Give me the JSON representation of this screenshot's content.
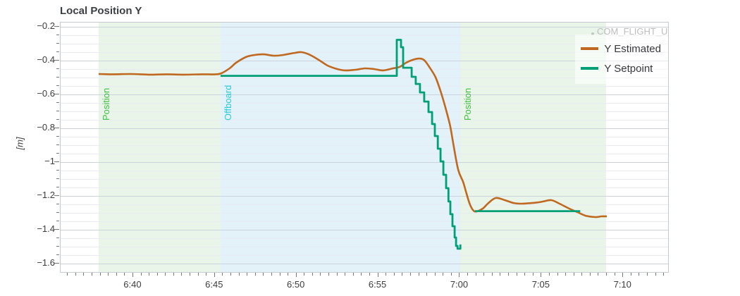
{
  "chart_data": {
    "type": "line",
    "title": "Local Position Y",
    "ylabel": "[m]",
    "xlabel": "",
    "x_unit": "time h:mm (stored as minutes since 0:00)",
    "xlim_minutes": [
      395.56,
      432.75
    ],
    "ylim": [
      -1.65,
      -0.175
    ],
    "grid": "horizontal-only",
    "legend_position": "top-right",
    "x_ticks": [
      {
        "t": 400,
        "label": "6:40"
      },
      {
        "t": 405,
        "label": "6:45"
      },
      {
        "t": 410,
        "label": "6:50"
      },
      {
        "t": 415,
        "label": "6:55"
      },
      {
        "t": 420,
        "label": "7:00"
      },
      {
        "t": 425,
        "label": "7:05"
      },
      {
        "t": 430,
        "label": "7:10"
      }
    ],
    "y_ticks": [
      {
        "v": -0.2,
        "label": "−0.2"
      },
      {
        "v": -0.4,
        "label": "−0.4"
      },
      {
        "v": -0.6,
        "label": "−0.6"
      },
      {
        "v": -0.8,
        "label": "−0.8"
      },
      {
        "v": -1.0,
        "label": "−1"
      },
      {
        "v": -1.2,
        "label": "−1.2"
      },
      {
        "v": -1.4,
        "label": "−1.4"
      },
      {
        "v": -1.6,
        "label": "−1.6"
      }
    ],
    "minor_x_step_minutes": 0.5,
    "minor_y_step": 0.05,
    "series": [
      {
        "name": "Y Estimated",
        "color": "#c0681f",
        "smooth": true,
        "points": [
          [
            397.89,
            -0.479
          ],
          [
            398.8,
            -0.481
          ],
          [
            399.87,
            -0.479
          ],
          [
            400.95,
            -0.483
          ],
          [
            402.03,
            -0.481
          ],
          [
            403.1,
            -0.483
          ],
          [
            404.19,
            -0.481
          ],
          [
            405.05,
            -0.481
          ],
          [
            405.4,
            -0.475
          ],
          [
            405.9,
            -0.446
          ],
          [
            406.3,
            -0.413
          ],
          [
            406.9,
            -0.379
          ],
          [
            407.4,
            -0.367
          ],
          [
            408.0,
            -0.363
          ],
          [
            408.6,
            -0.371
          ],
          [
            409.15,
            -0.367
          ],
          [
            409.9,
            -0.354
          ],
          [
            410.3,
            -0.35
          ],
          [
            410.75,
            -0.363
          ],
          [
            411.3,
            -0.392
          ],
          [
            411.9,
            -0.429
          ],
          [
            412.5,
            -0.45
          ],
          [
            413.0,
            -0.458
          ],
          [
            413.6,
            -0.454
          ],
          [
            414.2,
            -0.446
          ],
          [
            414.76,
            -0.45
          ],
          [
            415.3,
            -0.458
          ],
          [
            415.9,
            -0.446
          ],
          [
            416.3,
            -0.438
          ],
          [
            416.7,
            -0.413
          ],
          [
            417.1,
            -0.396
          ],
          [
            417.5,
            -0.388
          ],
          [
            417.8,
            -0.396
          ],
          [
            418.1,
            -0.433
          ],
          [
            418.5,
            -0.496
          ],
          [
            418.8,
            -0.575
          ],
          [
            419.1,
            -0.671
          ],
          [
            419.4,
            -0.783
          ],
          [
            419.6,
            -0.892
          ],
          [
            419.9,
            -1.046
          ],
          [
            420.2,
            -1.117
          ],
          [
            420.4,
            -1.183
          ],
          [
            420.6,
            -1.246
          ],
          [
            420.8,
            -1.283
          ],
          [
            421.0,
            -1.292
          ],
          [
            421.4,
            -1.275
          ],
          [
            421.75,
            -1.242
          ],
          [
            422.2,
            -1.212
          ],
          [
            422.75,
            -1.225
          ],
          [
            423.3,
            -1.242
          ],
          [
            423.8,
            -1.246
          ],
          [
            424.4,
            -1.242
          ],
          [
            424.8,
            -1.238
          ],
          [
            425.1,
            -1.233
          ],
          [
            425.6,
            -1.225
          ],
          [
            426.1,
            -1.246
          ],
          [
            426.7,
            -1.275
          ],
          [
            427.2,
            -1.296
          ],
          [
            427.7,
            -1.317
          ],
          [
            428.3,
            -1.325
          ],
          [
            428.66,
            -1.321
          ],
          [
            429.0,
            -1.321
          ]
        ]
      },
      {
        "name": "Y Setpoint",
        "color": "#00a077",
        "smooth": false,
        "segments": [
          [
            [
              405.35,
              -0.49
            ],
            [
              416.14,
              -0.49
            ],
            [
              416.14,
              -0.277
            ],
            [
              416.4,
              -0.277
            ],
            [
              416.4,
              -0.321
            ],
            [
              416.53,
              -0.321
            ],
            [
              416.53,
              -0.442
            ],
            [
              417.05,
              -0.442
            ],
            [
              417.05,
              -0.496
            ],
            [
              417.3,
              -0.496
            ],
            [
              417.3,
              -0.538
            ],
            [
              417.56,
              -0.538
            ],
            [
              417.56,
              -0.588
            ],
            [
              417.82,
              -0.588
            ],
            [
              417.82,
              -0.642
            ],
            [
              418.08,
              -0.642
            ],
            [
              418.08,
              -0.704
            ],
            [
              418.3,
              -0.704
            ],
            [
              418.3,
              -0.775
            ],
            [
              418.47,
              -0.775
            ],
            [
              418.47,
              -0.846
            ],
            [
              418.65,
              -0.846
            ],
            [
              418.65,
              -0.921
            ],
            [
              418.82,
              -0.921
            ],
            [
              418.82,
              -0.996
            ],
            [
              418.99,
              -0.996
            ],
            [
              418.99,
              -1.075
            ],
            [
              419.16,
              -1.075
            ],
            [
              419.16,
              -1.154
            ],
            [
              419.3,
              -1.154
            ],
            [
              419.3,
              -1.233
            ],
            [
              419.42,
              -1.233
            ],
            [
              419.42,
              -1.308
            ],
            [
              419.55,
              -1.308
            ],
            [
              419.55,
              -1.379
            ],
            [
              419.68,
              -1.379
            ],
            [
              419.68,
              -1.446
            ],
            [
              419.77,
              -1.446
            ],
            [
              419.77,
              -1.496
            ],
            [
              419.86,
              -1.496
            ],
            [
              419.86,
              -1.512
            ],
            [
              420.03,
              -1.512
            ],
            [
              420.03,
              -1.487
            ]
          ],
          [
            [
              420.93,
              -1.29
            ],
            [
              427.37,
              -1.29
            ]
          ]
        ]
      }
    ],
    "flight_modes": [
      {
        "label": "Position",
        "label_color": "#3dbf3d",
        "fill": "#e9f5e9",
        "t_start": 397.89,
        "t_end": 405.35
      },
      {
        "label": "Offboard",
        "label_color": "#27ccd8",
        "fill": "#e2f2f8",
        "t_start": 405.35,
        "t_end": 420.03
      },
      {
        "label": "Position",
        "label_color": "#3dbf3d",
        "fill": "#e9f5e9",
        "t_start": 420.03,
        "t_end": 428.96
      }
    ],
    "param_annotation": {
      "text": "COM_FLIGHT_U",
      "t_dot": 428.05,
      "color": "#bcbcbc"
    }
  }
}
